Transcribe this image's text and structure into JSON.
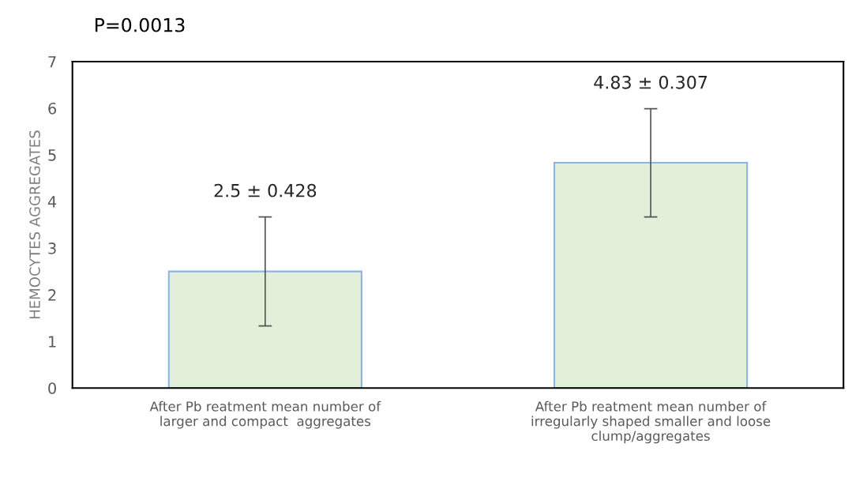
{
  "chart_data": {
    "type": "bar",
    "title": "P=0.0013",
    "ylabel": "HEMOCYTES AGGREGATES",
    "categories": [
      "After Pb reatment mean number of\nlarger and compact  aggregates",
      "After Pb reatment mean number of\nirregularly shaped smaller and loose\nclump/aggregates"
    ],
    "values": [
      2.5,
      4.83
    ],
    "errors": [
      1.17,
      1.16
    ],
    "annotations": [
      "2.5 ± 0.428",
      "4.83 ± 0.307"
    ],
    "color": "#e2efd9",
    "ylim": [
      0,
      7
    ],
    "yticks": [
      0,
      1,
      2,
      3,
      4,
      5,
      6,
      7
    ],
    "grid": false
  }
}
